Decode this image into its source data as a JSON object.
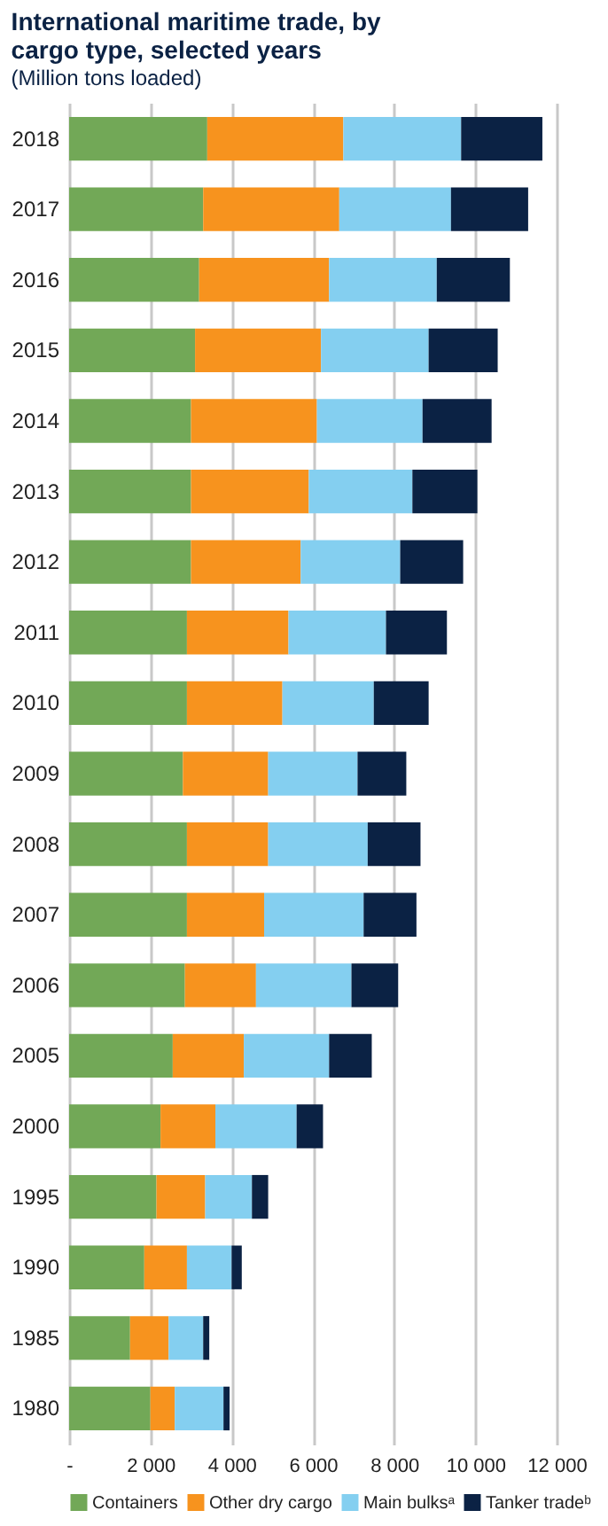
{
  "chart_data": {
    "type": "bar",
    "orientation": "horizontal",
    "stacked": true,
    "title": "International maritime trade, by cargo type, selected years",
    "subtitle": "(Million tons loaded)",
    "categories": [
      "2018",
      "2017",
      "2016",
      "2015",
      "2014",
      "2013",
      "2012",
      "2011",
      "2010",
      "2009",
      "2008",
      "2007",
      "2006",
      "2005",
      "2000",
      "1995",
      "1990",
      "1985",
      "1980"
    ],
    "series": [
      {
        "name": "Containers",
        "color": "#72a857",
        "values": [
          3400,
          3300,
          3200,
          3100,
          3000,
          3000,
          3000,
          2900,
          2900,
          2800,
          2900,
          2900,
          2850,
          2550,
          2250,
          2150,
          1850,
          1500,
          2000
        ]
      },
      {
        "name": "Other dry cargo",
        "color": "#f7931e",
        "values": [
          3350,
          3350,
          3200,
          3100,
          3100,
          2900,
          2700,
          2500,
          2350,
          2100,
          2000,
          1900,
          1750,
          1750,
          1350,
          1200,
          1050,
          950,
          600
        ]
      },
      {
        "name": "Main bulksᵃ",
        "color": "#84cff0",
        "values": [
          2900,
          2750,
          2650,
          2650,
          2600,
          2550,
          2450,
          2400,
          2250,
          2200,
          2450,
          2450,
          2350,
          2100,
          2000,
          1150,
          1100,
          850,
          1200
        ]
      },
      {
        "name": "Tanker tradeᵇ",
        "color": "#0b2244",
        "values": [
          2000,
          1900,
          1800,
          1700,
          1700,
          1600,
          1550,
          1500,
          1350,
          1200,
          1300,
          1300,
          1150,
          1050,
          650,
          400,
          250,
          150,
          150
        ]
      }
    ],
    "xlim": [
      0,
      12000
    ],
    "xticks": [
      {
        "value": 0,
        "label": "-"
      },
      {
        "value": 2000,
        "label": "2 000"
      },
      {
        "value": 4000,
        "label": "4 000"
      },
      {
        "value": 6000,
        "label": "6 000"
      },
      {
        "value": 8000,
        "label": "8 000"
      },
      {
        "value": 10000,
        "label": "10 000"
      },
      {
        "value": 12000,
        "label": "12 000"
      }
    ],
    "grid": "x",
    "legend": "bottom"
  }
}
